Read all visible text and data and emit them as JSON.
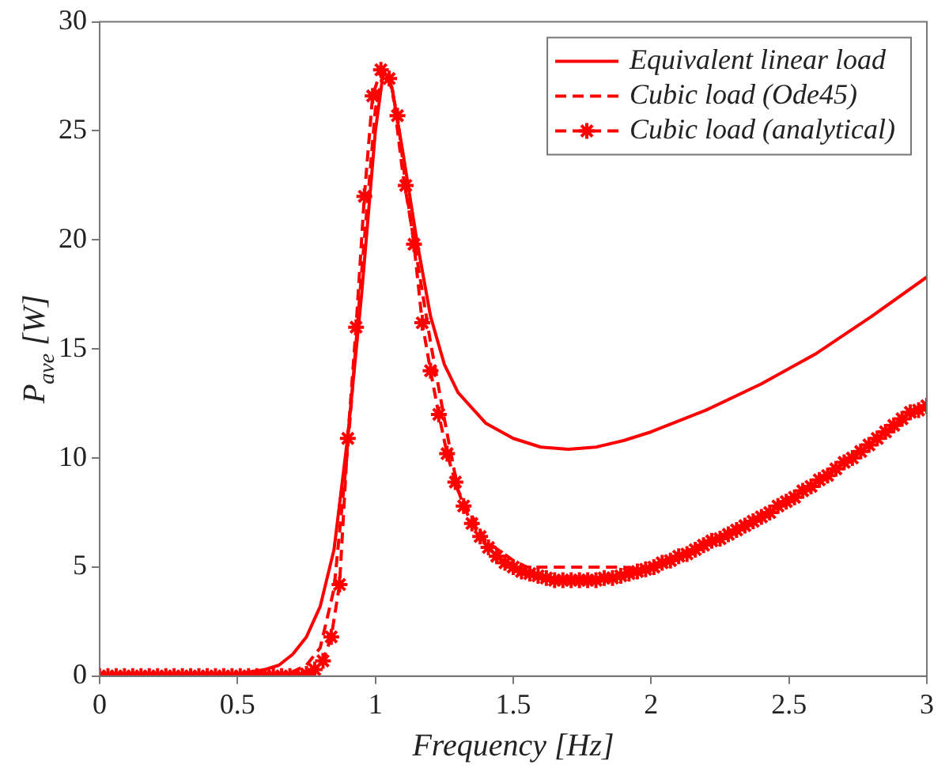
{
  "chart_data": {
    "type": "line",
    "xlabel": "Frequency [Hz]",
    "ylabel": "P$_{ave}$ [W]",
    "xlim": [
      0,
      3
    ],
    "xticks": [
      0,
      0.5,
      1,
      1.5,
      2,
      2.5,
      3
    ],
    "ylim": [
      0,
      30
    ],
    "yticks": [
      0,
      5,
      10,
      15,
      20,
      25,
      30
    ],
    "grid": false,
    "legend": "top right",
    "series": [
      {
        "name": "Equivalent linear load",
        "color": "#ff0000",
        "line_style": "solid",
        "marker": "none",
        "x": [
          0,
          0.3,
          0.5,
          0.6,
          0.65,
          0.7,
          0.75,
          0.8,
          0.85,
          0.9,
          0.95,
          1.0,
          1.03,
          1.06,
          1.1,
          1.15,
          1.2,
          1.25,
          1.3,
          1.4,
          1.5,
          1.6,
          1.7,
          1.8,
          1.9,
          2.0,
          2.2,
          2.4,
          2.6,
          2.8,
          3.0
        ],
        "values": [
          0,
          0,
          0.1,
          0.3,
          0.5,
          1.0,
          1.8,
          3.2,
          5.8,
          11,
          17.5,
          25,
          27.8,
          27,
          24,
          20,
          16.5,
          14.3,
          13,
          11.6,
          10.9,
          10.5,
          10.4,
          10.5,
          10.8,
          11.2,
          12.2,
          13.4,
          14.8,
          16.5,
          18.3
        ]
      },
      {
        "name": "Cubic load (Ode45)",
        "color": "#ff0000",
        "line_style": "dashed",
        "marker": "none",
        "x": [
          0,
          0.6,
          0.7,
          0.75,
          0.8,
          0.85,
          0.9,
          0.95,
          1.0,
          1.03,
          1.06,
          1.1,
          1.15,
          1.2,
          1.25,
          1.3,
          1.4,
          1.5,
          1.55,
          1.6,
          1.9,
          1.95,
          2.0,
          2.2,
          2.4,
          2.6,
          2.8,
          3.0
        ],
        "values": [
          0,
          0,
          0.2,
          0.5,
          1.3,
          4.0,
          10.5,
          18.5,
          26,
          27.8,
          27.1,
          23,
          19.2,
          15.3,
          11.8,
          8.5,
          6.2,
          5.3,
          5.0,
          5.0,
          5.0,
          4.9,
          5.0,
          6.0,
          7.3,
          8.9,
          10.7,
          12.4
        ]
      },
      {
        "name": "Cubic load (analytical)",
        "color": "#ff0000",
        "line_style": "dashed",
        "marker": "cross",
        "x": [
          0,
          0.03,
          0.06,
          0.09,
          0.12,
          0.15,
          0.18,
          0.21,
          0.24,
          0.27,
          0.3,
          0.33,
          0.36,
          0.39,
          0.42,
          0.45,
          0.48,
          0.51,
          0.54,
          0.57,
          0.6,
          0.63,
          0.66,
          0.69,
          0.72,
          0.75,
          0.78,
          0.81,
          0.84,
          0.87,
          0.9,
          0.93,
          0.96,
          0.99,
          1.02,
          1.05,
          1.08,
          1.11,
          1.14,
          1.17,
          1.2,
          1.23,
          1.26,
          1.29,
          1.32,
          1.35,
          1.38,
          1.41,
          1.44,
          1.47,
          1.5,
          1.53,
          1.56,
          1.59,
          1.62,
          1.65,
          1.68,
          1.71,
          1.74,
          1.77,
          1.8,
          1.83,
          1.86,
          1.89,
          1.92,
          1.95,
          1.98,
          2.01,
          2.04,
          2.07,
          2.1,
          2.13,
          2.16,
          2.19,
          2.22,
          2.25,
          2.28,
          2.31,
          2.34,
          2.37,
          2.4,
          2.43,
          2.46,
          2.49,
          2.52,
          2.55,
          2.58,
          2.61,
          2.64,
          2.67,
          2.7,
          2.73,
          2.76,
          2.79,
          2.82,
          2.85,
          2.88,
          2.91,
          2.94,
          2.97,
          3.0
        ],
        "values": [
          0,
          0,
          0,
          0,
          0,
          0,
          0,
          0,
          0,
          0,
          0,
          0,
          0,
          0,
          0,
          0,
          0,
          0,
          0,
          0,
          0,
          0,
          0,
          0,
          0,
          0.1,
          0.3,
          0.7,
          1.8,
          4.2,
          10.9,
          16,
          22,
          26.6,
          27.8,
          27.4,
          25.7,
          22.5,
          19.8,
          16.2,
          14,
          12,
          10.2,
          8.9,
          7.8,
          7.0,
          6.4,
          5.9,
          5.5,
          5.2,
          5.0,
          4.8,
          4.7,
          4.6,
          4.5,
          4.4,
          4.4,
          4.4,
          4.4,
          4.4,
          4.4,
          4.5,
          4.5,
          4.6,
          4.7,
          4.8,
          4.9,
          5.0,
          5.2,
          5.3,
          5.5,
          5.6,
          5.8,
          6.0,
          6.2,
          6.3,
          6.5,
          6.7,
          6.9,
          7.1,
          7.3,
          7.5,
          7.8,
          8.0,
          8.2,
          8.5,
          8.7,
          9.0,
          9.2,
          9.5,
          9.8,
          10.0,
          10.3,
          10.6,
          10.9,
          11.2,
          11.5,
          11.8,
          12.1,
          12.2,
          12.4
        ]
      }
    ]
  }
}
